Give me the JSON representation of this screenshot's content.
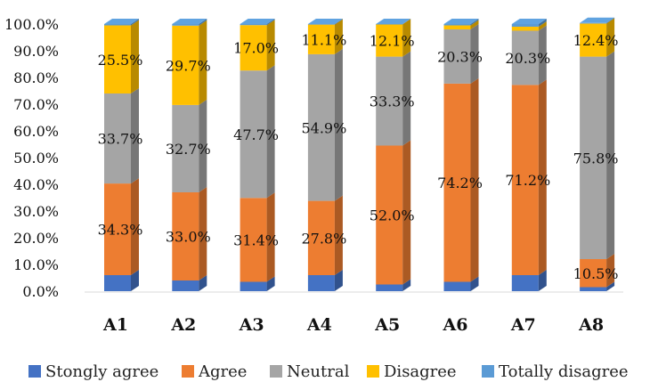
{
  "chart_data": {
    "type": "bar",
    "stacked": true,
    "orientation": "vertical",
    "categories": [
      "A1",
      "A2",
      "A3",
      "A4",
      "A5",
      "A6",
      "A7",
      "A8"
    ],
    "series": [
      {
        "name": "Stongly agree",
        "color": "#4472C4",
        "values": [
          6.0,
          4.0,
          3.5,
          6.0,
          2.5,
          3.5,
          6.0,
          1.5
        ]
      },
      {
        "name": "Agree",
        "color": "#ED7D31",
        "values": [
          34.3,
          33.0,
          31.4,
          27.8,
          52.0,
          74.2,
          71.2,
          10.5
        ]
      },
      {
        "name": "Neutral",
        "color": "#A5A5A5",
        "values": [
          33.7,
          32.7,
          47.7,
          54.9,
          33.3,
          20.3,
          20.3,
          75.8
        ]
      },
      {
        "name": "Disagree",
        "color": "#FFC000",
        "values": [
          25.5,
          29.7,
          17.0,
          11.1,
          12.1,
          1.5,
          1.5,
          12.4
        ]
      },
      {
        "name": "Totally disagree",
        "color": "#5B9BD5",
        "values": [
          0.5,
          0.6,
          0.4,
          0.2,
          0.1,
          0.5,
          1.0,
          0.2
        ]
      }
    ],
    "data_labels": [
      [
        "",
        "34.3%",
        "33.7%",
        "25.5%",
        ""
      ],
      [
        "",
        "33.0%",
        "32.7%",
        "29.7%",
        ""
      ],
      [
        "",
        "31.4%",
        "47.7%",
        "17.0%",
        ""
      ],
      [
        "",
        "27.8%",
        "54.9%",
        "11.1%",
        ""
      ],
      [
        "",
        "52.0%",
        "33.3%",
        "12.1%",
        ""
      ],
      [
        "",
        "74.2%",
        "20.3%",
        "",
        ""
      ],
      [
        "",
        "71.2%",
        "20.3%",
        "",
        ""
      ],
      [
        "",
        "10.5%",
        "75.8%",
        "12.4%",
        ""
      ]
    ],
    "y_ticks": [
      "0.0%",
      "10.0%",
      "20.0%",
      "30.0%",
      "40.0%",
      "50.0%",
      "60.0%",
      "70.0%",
      "80.0%",
      "90.0%",
      "100.0%"
    ],
    "ylim": [
      0,
      100
    ],
    "title": "",
    "xlabel": "",
    "ylabel": "",
    "grid": false,
    "legend_position": "bottom"
  }
}
